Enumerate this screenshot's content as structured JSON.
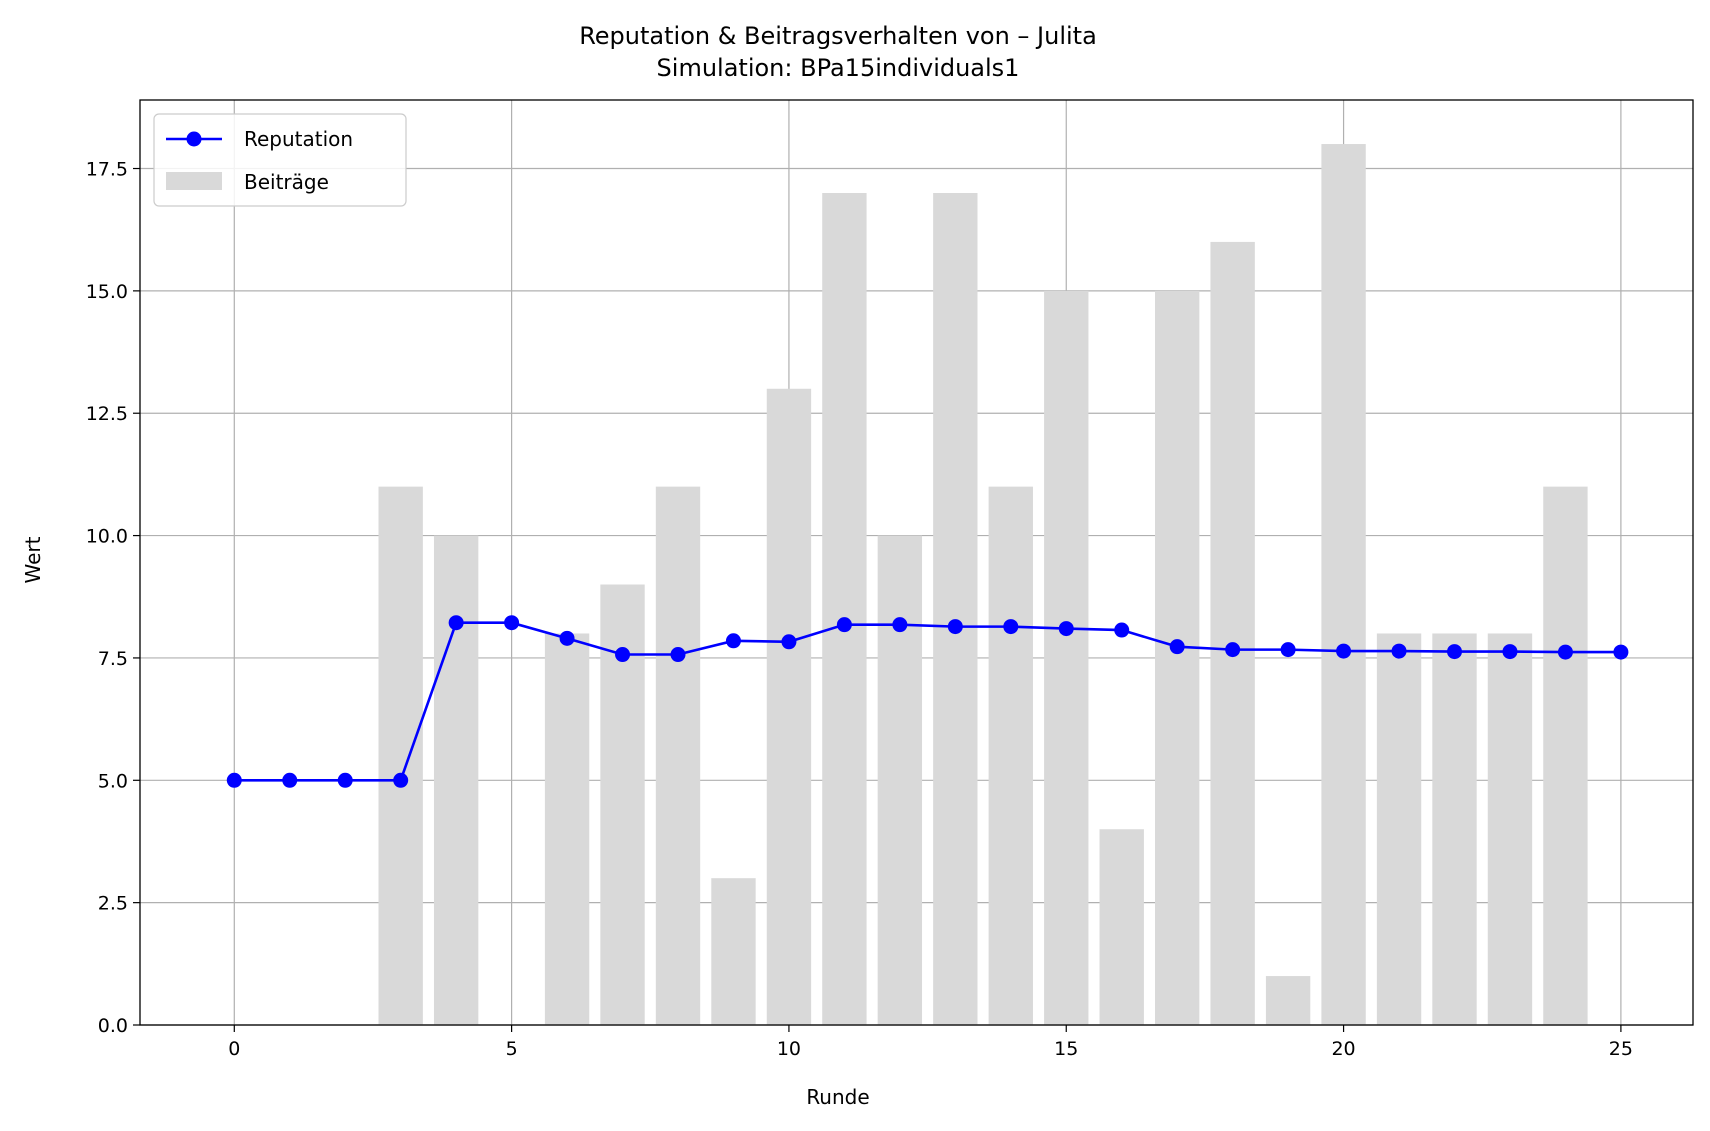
{
  "chart_data": {
    "type": "bar+line",
    "title": "Reputation & Beitragsverhalten von – Julita",
    "subtitle": "Simulation: BPa15individuals1",
    "xlabel": "Runde",
    "ylabel": "Wert",
    "xlim": [
      -1.7,
      26.3
    ],
    "ylim": [
      0,
      18.9
    ],
    "xticks": [
      0,
      5,
      10,
      15,
      20,
      25
    ],
    "yticks": [
      0,
      2.5,
      5,
      7.5,
      10,
      12.5,
      15,
      17.5
    ],
    "ytick_labels": [
      "0.0",
      "2.5",
      "5.0",
      "7.5",
      "10.0",
      "12.5",
      "15.0",
      "17.5"
    ],
    "grid": true,
    "legend_position": "top-left",
    "colors": {
      "line": "#0000ff",
      "bars": "#d9d9d9",
      "grid": "#b0b0b0"
    },
    "series": [
      {
        "name": "Reputation",
        "type": "line",
        "x": [
          0,
          1,
          2,
          3,
          4,
          5,
          6,
          7,
          8,
          9,
          10,
          11,
          12,
          13,
          14,
          15,
          16,
          17,
          18,
          19,
          20,
          21,
          22,
          23,
          24,
          25
        ],
        "values": [
          5.0,
          5.0,
          5.0,
          5.0,
          8.22,
          8.22,
          7.9,
          7.57,
          7.57,
          7.85,
          7.83,
          8.18,
          8.18,
          8.14,
          8.14,
          8.1,
          8.07,
          7.73,
          7.67,
          7.67,
          7.64,
          7.64,
          7.63,
          7.63,
          7.62,
          7.62
        ]
      },
      {
        "name": "Beiträge",
        "type": "bar",
        "x": [
          0,
          1,
          2,
          3,
          4,
          5,
          6,
          7,
          8,
          9,
          10,
          11,
          12,
          13,
          14,
          15,
          16,
          17,
          18,
          19,
          20,
          21,
          22,
          23,
          24,
          25
        ],
        "values": [
          0,
          0,
          0,
          11,
          10,
          0,
          8,
          9,
          11,
          3,
          13,
          17,
          10,
          17,
          11,
          15,
          4,
          15,
          16,
          1,
          18,
          8,
          8,
          8,
          11,
          0
        ]
      }
    ]
  }
}
